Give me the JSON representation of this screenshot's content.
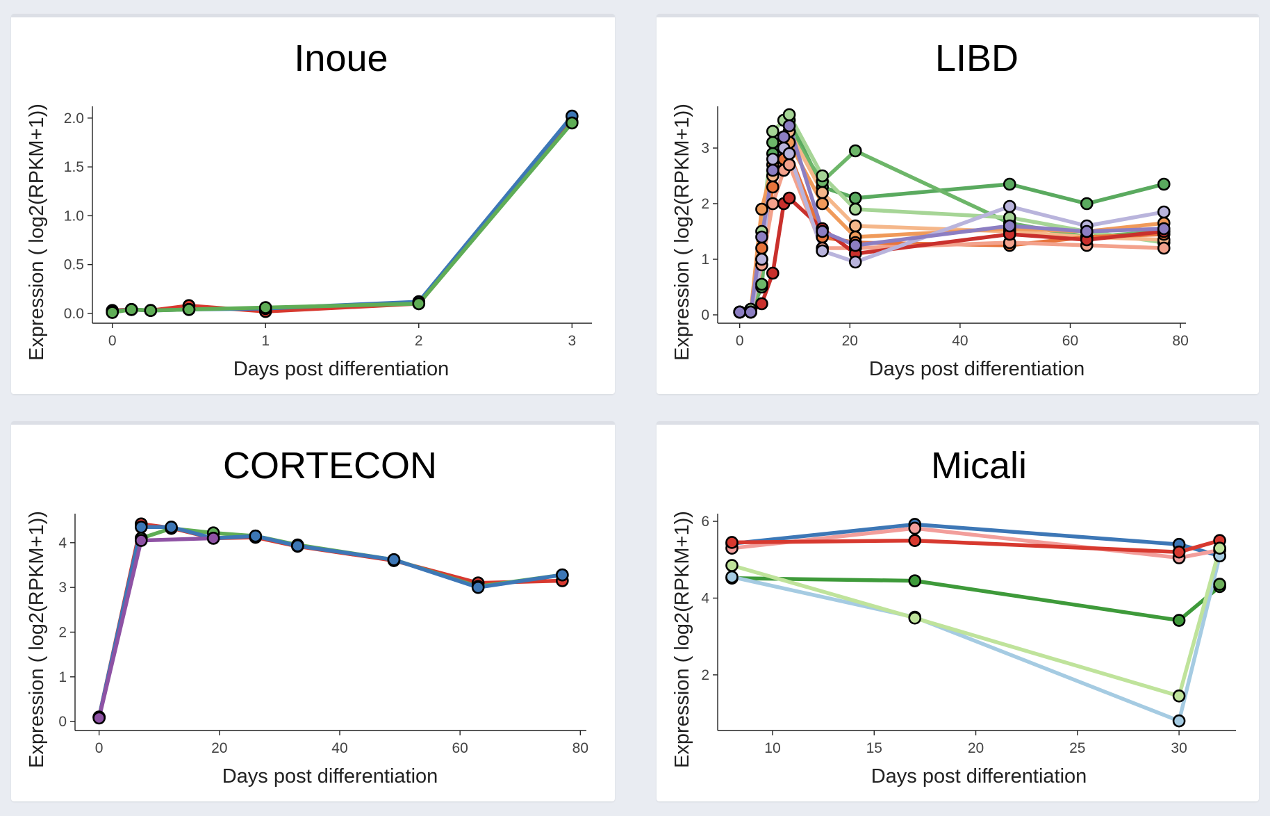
{
  "colors": {
    "background": "#e9ecf2",
    "panel": "#ffffff",
    "marker_edge": "#000000"
  },
  "chart_data": [
    {
      "type": "line",
      "title": "Inoue",
      "xlabel": "Days post differentiation",
      "ylabel": "Expression ( log2(RPKM+1))",
      "xlim": [
        -0.13,
        3.13
      ],
      "ylim": [
        -0.1,
        2.12
      ],
      "xticks": [
        0,
        1,
        2,
        3
      ],
      "yticks": [
        0.0,
        0.5,
        1.0,
        1.5,
        2.0
      ],
      "xtick_labels": [
        "0",
        "1",
        "2",
        "3"
      ],
      "ytick_labels": [
        "0.0",
        "0.5",
        "1.0",
        "1.5",
        "2.0"
      ],
      "grid": false,
      "series": [
        {
          "color": "#d7392f",
          "x": [
            0,
            0.125,
            0.25,
            0.5,
            1,
            2,
            3
          ],
          "y": [
            0.03,
            0.04,
            0.03,
            0.08,
            0.02,
            0.1,
            1.96
          ]
        },
        {
          "color": "#3d77b6",
          "x": [
            0,
            0.125,
            0.25,
            0.5,
            1,
            2,
            3
          ],
          "y": [
            0.02,
            0.04,
            0.03,
            0.04,
            0.05,
            0.12,
            2.02
          ]
        },
        {
          "color": "#5fad56",
          "x": [
            0,
            0.125,
            0.25,
            0.5,
            1,
            2,
            3
          ],
          "y": [
            0.01,
            0.04,
            0.03,
            0.04,
            0.06,
            0.1,
            1.95
          ]
        }
      ]
    },
    {
      "type": "line",
      "title": "LIBD",
      "xlabel": "Days post differentiation",
      "ylabel": "Expression ( log2(RPKM+1))",
      "xlim": [
        -4,
        81
      ],
      "ylim": [
        -0.15,
        3.75
      ],
      "xticks": [
        0,
        20,
        40,
        60,
        80
      ],
      "yticks": [
        0,
        1,
        2,
        3
      ],
      "xtick_labels": [
        "0",
        "20",
        "40",
        "60",
        "80"
      ],
      "ytick_labels": [
        "0",
        "1",
        "2",
        "3"
      ],
      "grid": false,
      "series": [
        {
          "color": "#5aaa5f",
          "x": [
            0,
            2,
            4,
            6,
            8,
            9,
            15,
            21,
            49,
            63,
            77
          ],
          "y": [
            0.05,
            0.05,
            0.5,
            2.9,
            3.2,
            3.5,
            2.3,
            2.1,
            2.35,
            2.0,
            2.35
          ]
        },
        {
          "color": "#6db669",
          "x": [
            0,
            2,
            4,
            6,
            8,
            9,
            15,
            21,
            49,
            63,
            77
          ],
          "y": [
            0.05,
            0.1,
            0.55,
            3.1,
            3.2,
            3.3,
            2.4,
            2.95,
            1.65,
            1.4,
            1.5
          ]
        },
        {
          "color": "#a6d596",
          "x": [
            0,
            2,
            4,
            6,
            8,
            9,
            15,
            21,
            49,
            63,
            77
          ],
          "y": [
            0.05,
            0.1,
            1.5,
            3.3,
            3.5,
            3.6,
            2.5,
            1.9,
            1.75,
            1.5,
            1.3
          ]
        },
        {
          "color": "#f5b78a",
          "x": [
            0,
            2,
            4,
            6,
            8,
            9,
            15,
            21,
            49,
            63,
            77
          ],
          "y": [
            0.05,
            0.05,
            1.0,
            2.5,
            3.1,
            3.3,
            2.2,
            1.6,
            1.5,
            1.4,
            1.35
          ]
        },
        {
          "color": "#f09a5a",
          "x": [
            0,
            2,
            4,
            6,
            8,
            9,
            15,
            21,
            49,
            63,
            77
          ],
          "y": [
            0.05,
            0.05,
            1.9,
            2.7,
            3.0,
            3.1,
            2.0,
            1.4,
            1.55,
            1.5,
            1.65
          ]
        },
        {
          "color": "#e8743b",
          "x": [
            0,
            2,
            4,
            6,
            8,
            9,
            15,
            21,
            49,
            63,
            77
          ],
          "y": [
            0.05,
            0.05,
            1.2,
            2.3,
            2.8,
            2.9,
            1.4,
            1.3,
            1.25,
            1.4,
            1.45
          ]
        },
        {
          "color": "#f3a28c",
          "x": [
            0,
            2,
            4,
            6,
            8,
            9,
            15,
            21,
            49,
            63,
            77
          ],
          "y": [
            0.05,
            0.05,
            0.9,
            2.0,
            2.6,
            2.7,
            1.2,
            1.2,
            1.3,
            1.25,
            1.2
          ]
        },
        {
          "color": "#c9302c",
          "x": [
            0,
            2,
            4,
            6,
            8,
            9,
            15,
            21,
            49,
            63,
            77
          ],
          "y": [
            0.05,
            0.05,
            0.2,
            0.75,
            2.0,
            2.1,
            1.55,
            1.1,
            1.45,
            1.35,
            1.5
          ]
        },
        {
          "color": "#b9b4dc",
          "x": [
            0,
            2,
            4,
            6,
            8,
            9,
            15,
            21,
            49,
            63,
            77
          ],
          "y": [
            0.05,
            0.05,
            1.0,
            2.8,
            3.0,
            2.9,
            1.15,
            0.95,
            1.95,
            1.6,
            1.85
          ]
        },
        {
          "color": "#8c7ec2",
          "x": [
            0,
            2,
            4,
            6,
            8,
            9,
            15,
            21,
            49,
            63,
            77
          ],
          "y": [
            0.05,
            0.05,
            1.4,
            2.6,
            3.2,
            3.4,
            1.5,
            1.25,
            1.6,
            1.5,
            1.55
          ]
        }
      ]
    },
    {
      "type": "line",
      "title": "CORTECON",
      "xlabel": "Days post differentiation",
      "ylabel": "Expression ( log2(RPKM+1))",
      "xlim": [
        -4,
        81
      ],
      "ylim": [
        -0.2,
        4.65
      ],
      "xticks": [
        0,
        20,
        40,
        60,
        80
      ],
      "yticks": [
        0,
        1,
        2,
        3,
        4
      ],
      "xtick_labels": [
        "0",
        "20",
        "40",
        "60",
        "80"
      ],
      "ytick_labels": [
        "0",
        "1",
        "2",
        "3",
        "4"
      ],
      "grid": false,
      "series": [
        {
          "color": "#d7392f",
          "x": [
            0,
            7,
            12,
            19,
            26,
            33,
            49,
            63,
            77
          ],
          "y": [
            0.1,
            4.42,
            4.33,
            4.1,
            4.12,
            3.92,
            3.6,
            3.1,
            3.15
          ]
        },
        {
          "color": "#5fad56",
          "x": [
            0,
            7,
            12,
            19,
            26,
            33,
            49,
            63,
            77
          ],
          "y": [
            0.1,
            4.1,
            4.32,
            4.22,
            4.15,
            3.95,
            3.62,
            3.02,
            3.28
          ]
        },
        {
          "color": "#3d77b6",
          "x": [
            0,
            7,
            12,
            19,
            26,
            33,
            49,
            63,
            77
          ],
          "y": [
            0.1,
            4.35,
            4.35,
            4.1,
            4.15,
            3.93,
            3.62,
            3.0,
            3.28
          ]
        },
        {
          "color": "#8e52a4",
          "x": [
            0,
            7,
            19
          ],
          "y": [
            0.08,
            4.05,
            4.1
          ]
        }
      ]
    },
    {
      "type": "line",
      "title": "Micali",
      "xlabel": "Days post differentiation",
      "ylabel": "Expression ( log2(RPKM+1))",
      "xlim": [
        7.3,
        32.8
      ],
      "ylim": [
        0.55,
        6.2
      ],
      "xticks": [
        10,
        15,
        20,
        25,
        30
      ],
      "yticks": [
        2,
        4,
        6
      ],
      "xtick_labels": [
        "10",
        "15",
        "20",
        "25",
        "30"
      ],
      "ytick_labels": [
        "2",
        "4",
        "6"
      ],
      "grid": false,
      "series": [
        {
          "color": "#3d77b6",
          "x": [
            8,
            17,
            30,
            32
          ],
          "y": [
            5.42,
            5.92,
            5.4,
            5.1
          ]
        },
        {
          "color": "#f29e9b",
          "x": [
            8,
            17,
            30,
            32
          ],
          "y": [
            5.3,
            5.82,
            5.05,
            5.25
          ]
        },
        {
          "color": "#d7392f",
          "x": [
            8,
            17,
            30,
            32
          ],
          "y": [
            5.45,
            5.5,
            5.2,
            5.5
          ]
        },
        {
          "color": "#3e9a3a",
          "x": [
            8,
            17,
            30,
            32
          ],
          "y": [
            4.52,
            4.45,
            3.42,
            4.3
          ]
        },
        {
          "color": "#6daf5b",
          "x": [
            32
          ],
          "y": [
            4.36
          ]
        },
        {
          "color": "#a5cbe2",
          "x": [
            8,
            17,
            30,
            32
          ],
          "y": [
            4.55,
            3.5,
            0.8,
            5.1
          ]
        },
        {
          "color": "#bfe39b",
          "x": [
            8,
            17,
            30,
            32
          ],
          "y": [
            4.85,
            3.48,
            1.45,
            5.3
          ]
        }
      ]
    }
  ]
}
